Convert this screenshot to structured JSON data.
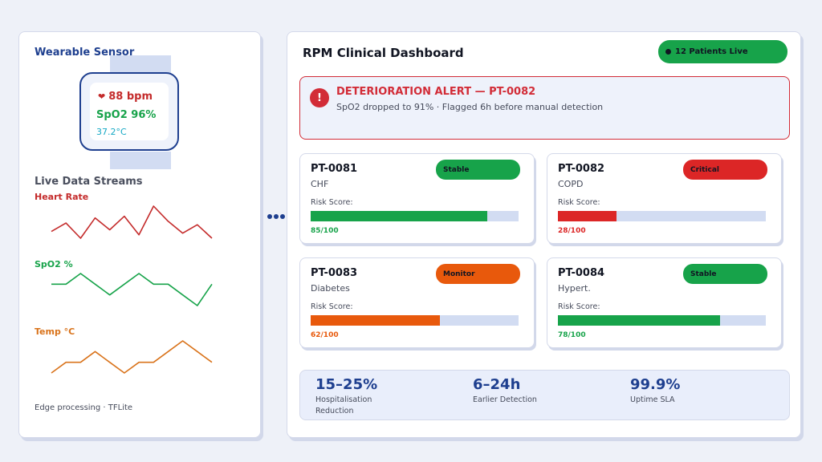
{
  "sensor": {
    "title": "Wearable Sensor",
    "heart_icon": "heart-icon",
    "heart_rate": "88 bpm",
    "spo2": "SpO2 96%",
    "temp": "37.2°C"
  },
  "streams": {
    "title": "Live Data Streams",
    "items": [
      {
        "label": "Heart Rate",
        "color": "#c42b2b",
        "values": [
          88,
          93,
          84,
          96,
          89,
          97,
          86,
          103,
          94,
          87,
          92,
          84
        ]
      },
      {
        "label": "SpO2 %",
        "color": "#17a34a",
        "values": [
          96,
          96,
          98,
          96,
          94,
          96,
          98,
          96,
          96,
          94,
          92,
          96
        ]
      },
      {
        "label": "Temp °C",
        "color": "#d9731b",
        "values": [
          36.9,
          37.1,
          37.1,
          37.3,
          37.1,
          36.9,
          37.1,
          37.1,
          37.3,
          37.5,
          37.3,
          37.1
        ]
      }
    ],
    "footer": "Edge processing · TFLite"
  },
  "dashboard": {
    "title": "RPM Clinical Dashboard",
    "live_badge": "12 Patients Live",
    "live_color": "#17a34a"
  },
  "alert": {
    "icon": "alert-icon",
    "icon_glyph": "!",
    "title": "DETERIORATION ALERT — PT-0082",
    "text": "SpO2 dropped to 91%  ·  Flagged 6h before manual detection",
    "color": "#d22c37"
  },
  "patients": [
    {
      "id": "PT-0081",
      "condition": "CHF",
      "status": "Stable",
      "risk_label": "Risk Score:",
      "score": "85/100",
      "fraction": 0.85,
      "color": "#17a34a"
    },
    {
      "id": "PT-0082",
      "condition": "COPD",
      "status": "Critical",
      "risk_label": "Risk Score:",
      "score": "28/100",
      "fraction": 0.28,
      "color": "#dc2626"
    },
    {
      "id": "PT-0083",
      "condition": "Diabetes",
      "status": "Monitor",
      "risk_label": "Risk Score:",
      "score": "62/100",
      "fraction": 0.62,
      "color": "#e8590c"
    },
    {
      "id": "PT-0084",
      "condition": "Hypert.",
      "status": "Stable",
      "risk_label": "Risk Score:",
      "score": "78/100",
      "fraction": 0.78,
      "color": "#17a34a"
    }
  ],
  "stats": [
    {
      "value": "15–25%",
      "label": "Hospitalisation Reduction"
    },
    {
      "value": "6–24h",
      "label": "Earlier Detection"
    },
    {
      "value": "99.9%",
      "label": "Uptime SLA"
    }
  ]
}
